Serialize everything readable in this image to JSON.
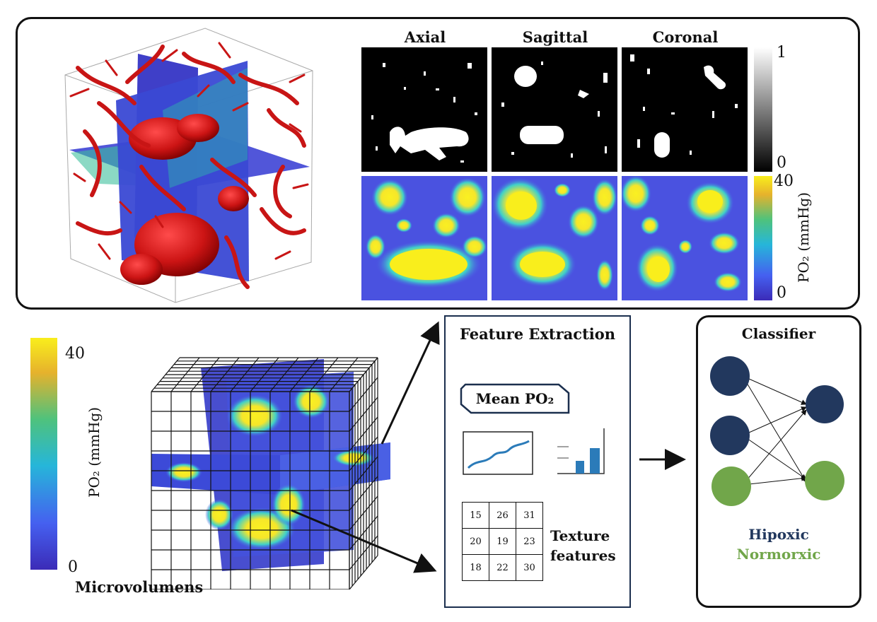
{
  "views": {
    "axial": "Axial",
    "sagittal": "Sagittal",
    "coronal": "Coronal"
  },
  "binary_colorbar": {
    "max": "1",
    "min": "0"
  },
  "po2_colorbar_top": {
    "max": "40",
    "min": "0",
    "label": "PO₂ (mmHg)"
  },
  "po2_colorbar_left": {
    "max": "40",
    "min": "0",
    "label": "PO₂ (mmHg)"
  },
  "microvolumes_label": "Microvolumens",
  "feature_extraction": {
    "title": "Feature Extraction",
    "mean_label": "Mean PO₂",
    "texture_label_line1": "Texture",
    "texture_label_line2": "features",
    "texture_matrix": [
      [
        "15",
        "26",
        "31"
      ],
      [
        "20",
        "19",
        "23"
      ],
      [
        "18",
        "22",
        "30"
      ]
    ]
  },
  "classifier": {
    "title": "Classifier",
    "class_hypoxic": "Hipoxic",
    "class_normoxic": "Normorxic"
  },
  "colors": {
    "hypoxic": "#22385e",
    "normoxic": "#71a64a",
    "vessel": "#c61a1a",
    "line_blue": "#2b7bb9"
  }
}
